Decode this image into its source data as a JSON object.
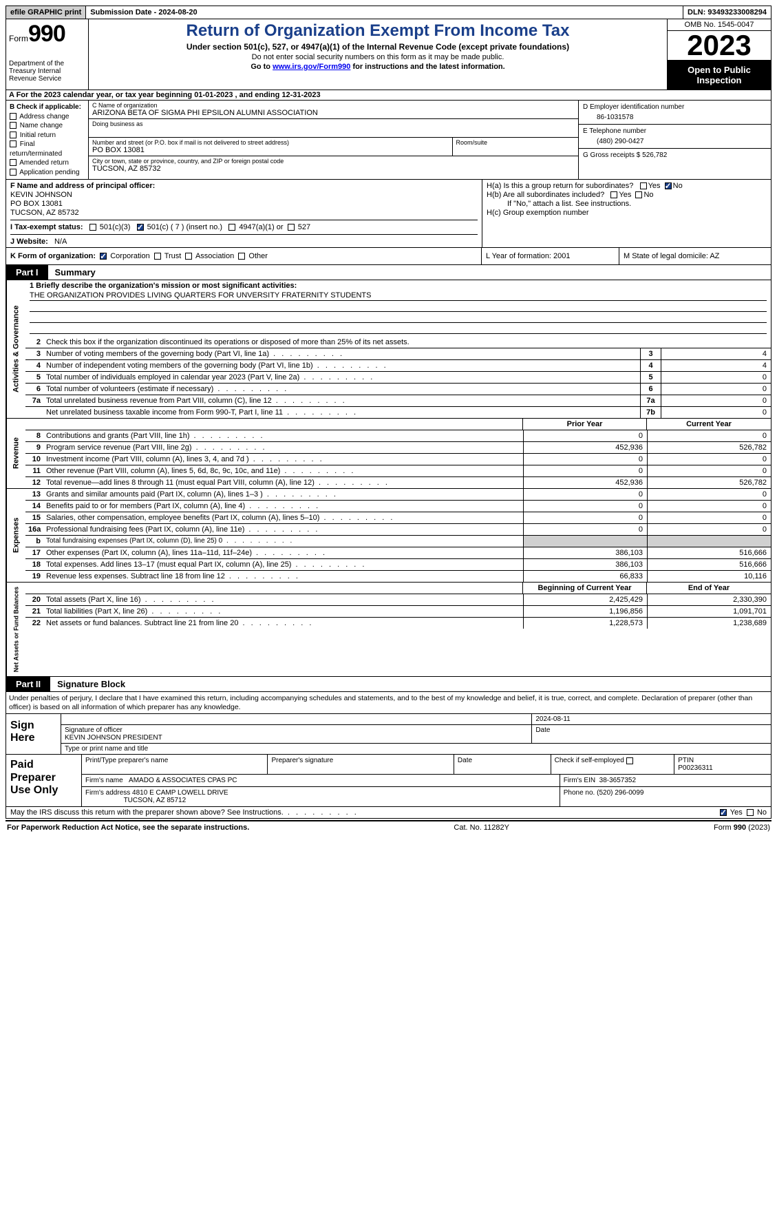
{
  "topbar": {
    "efile": "efile GRAPHIC print",
    "submission_label": "Submission Date - 2024-08-20",
    "dln_label": "DLN: 93493233008294"
  },
  "header": {
    "form_word": "Form",
    "form_num": "990",
    "dept": "Department of the Treasury Internal Revenue Service",
    "title": "Return of Organization Exempt From Income Tax",
    "sub1": "Under section 501(c), 527, or 4947(a)(1) of the Internal Revenue Code (except private foundations)",
    "sub2": "Do not enter social security numbers on this form as it may be made public.",
    "sub3_pre": "Go to ",
    "sub3_link": "www.irs.gov/Form990",
    "sub3_post": " for instructions and the latest information.",
    "omb": "OMB No. 1545-0047",
    "year": "2023",
    "open": "Open to Public Inspection"
  },
  "period": "A For the 2023 calendar year, or tax year beginning 01-01-2023   , and ending 12-31-2023",
  "boxB": {
    "label": "B Check if applicable:",
    "items": [
      "Address change",
      "Name change",
      "Initial return",
      "Final return/terminated",
      "Amended return",
      "Application pending"
    ]
  },
  "boxC": {
    "name_lbl": "C Name of organization",
    "name": "ARIZONA BETA OF SIGMA PHI EPSILON ALUMNI ASSOCIATION",
    "dba_lbl": "Doing business as",
    "street_lbl": "Number and street (or P.O. box if mail is not delivered to street address)",
    "street": "PO BOX 13081",
    "room_lbl": "Room/suite",
    "city_lbl": "City or town, state or province, country, and ZIP or foreign postal code",
    "city": "TUCSON, AZ  85732"
  },
  "boxD": {
    "lbl": "D Employer identification number",
    "val": "86-1031578"
  },
  "boxE": {
    "lbl": "E Telephone number",
    "val": "(480) 290-0427"
  },
  "boxG": {
    "lbl": "G Gross receipts $ 526,782"
  },
  "boxF": {
    "lbl": "F  Name and address of principal officer:",
    "name": "KEVIN JOHNSON",
    "addr1": "PO BOX 13081",
    "addr2": "TUCSON, AZ  85732"
  },
  "boxH": {
    "a": "H(a)  Is this a group return for subordinates?",
    "b": "H(b)  Are all subordinates included?",
    "b_note": "If \"No,\" attach a list. See instructions.",
    "c": "H(c)  Group exemption number",
    "yes": "Yes",
    "no": "No"
  },
  "rowI": {
    "lbl": "I  Tax-exempt status:",
    "o1": "501(c)(3)",
    "o2": "501(c) ( 7 ) (insert no.)",
    "o3": "4947(a)(1) or",
    "o4": "527"
  },
  "rowJ": {
    "lbl": "J  Website:",
    "val": "N/A"
  },
  "rowK": {
    "lbl": "K Form of organization:",
    "o1": "Corporation",
    "o2": "Trust",
    "o3": "Association",
    "o4": "Other"
  },
  "rowL": "L Year of formation: 2001",
  "rowM": "M State of legal domicile: AZ",
  "part1": {
    "tag": "Part I",
    "title": "Summary"
  },
  "vtabs": {
    "gov": "Activities & Governance",
    "rev": "Revenue",
    "exp": "Expenses",
    "net": "Net Assets or Fund Balances"
  },
  "mission": {
    "lbl": "1   Briefly describe the organization's mission or most significant activities:",
    "txt": "THE ORGANIZATION PROVIDES LIVING QUARTERS FOR UNVERSITY FRATERNITY STUDENTS"
  },
  "line2": "Check this box      if the organization discontinued its operations or disposed of more than 25% of its net assets.",
  "gov_rows": [
    {
      "n": "3",
      "t": "Number of voting members of the governing body (Part VI, line 1a)",
      "b": "3",
      "v": "4"
    },
    {
      "n": "4",
      "t": "Number of independent voting members of the governing body (Part VI, line 1b)",
      "b": "4",
      "v": "4"
    },
    {
      "n": "5",
      "t": "Total number of individuals employed in calendar year 2023 (Part V, line 2a)",
      "b": "5",
      "v": "0"
    },
    {
      "n": "6",
      "t": "Total number of volunteers (estimate if necessary)",
      "b": "6",
      "v": "0"
    },
    {
      "n": "7a",
      "t": "Total unrelated business revenue from Part VIII, column (C), line 12",
      "b": "7a",
      "v": "0"
    },
    {
      "n": "",
      "t": "Net unrelated business taxable income from Form 990-T, Part I, line 11",
      "b": "7b",
      "v": "0"
    }
  ],
  "col_hdr": {
    "py": "Prior Year",
    "cy": "Current Year",
    "bcy": "Beginning of Current Year",
    "eoy": "End of Year"
  },
  "rev_rows": [
    {
      "n": "8",
      "t": "Contributions and grants (Part VIII, line 1h)",
      "py": "0",
      "cy": "0"
    },
    {
      "n": "9",
      "t": "Program service revenue (Part VIII, line 2g)",
      "py": "452,936",
      "cy": "526,782"
    },
    {
      "n": "10",
      "t": "Investment income (Part VIII, column (A), lines 3, 4, and 7d )",
      "py": "0",
      "cy": "0"
    },
    {
      "n": "11",
      "t": "Other revenue (Part VIII, column (A), lines 5, 6d, 8c, 9c, 10c, and 11e)",
      "py": "0",
      "cy": "0"
    },
    {
      "n": "12",
      "t": "Total revenue—add lines 8 through 11 (must equal Part VIII, column (A), line 12)",
      "py": "452,936",
      "cy": "526,782"
    }
  ],
  "exp_rows": [
    {
      "n": "13",
      "t": "Grants and similar amounts paid (Part IX, column (A), lines 1–3 )",
      "py": "0",
      "cy": "0"
    },
    {
      "n": "14",
      "t": "Benefits paid to or for members (Part IX, column (A), line 4)",
      "py": "0",
      "cy": "0"
    },
    {
      "n": "15",
      "t": "Salaries, other compensation, employee benefits (Part IX, column (A), lines 5–10)",
      "py": "0",
      "cy": "0"
    },
    {
      "n": "16a",
      "t": "Professional fundraising fees (Part IX, column (A), line 11e)",
      "py": "0",
      "cy": "0"
    },
    {
      "n": "b",
      "t": "Total fundraising expenses (Part IX, column (D), line 25) 0",
      "py": "",
      "cy": "",
      "shade": true,
      "small": true
    },
    {
      "n": "17",
      "t": "Other expenses (Part IX, column (A), lines 11a–11d, 11f–24e)",
      "py": "386,103",
      "cy": "516,666"
    },
    {
      "n": "18",
      "t": "Total expenses. Add lines 13–17 (must equal Part IX, column (A), line 25)",
      "py": "386,103",
      "cy": "516,666"
    },
    {
      "n": "19",
      "t": "Revenue less expenses. Subtract line 18 from line 12",
      "py": "66,833",
      "cy": "10,116"
    }
  ],
  "net_rows": [
    {
      "n": "20",
      "t": "Total assets (Part X, line 16)",
      "py": "2,425,429",
      "cy": "2,330,390"
    },
    {
      "n": "21",
      "t": "Total liabilities (Part X, line 26)",
      "py": "1,196,856",
      "cy": "1,091,701"
    },
    {
      "n": "22",
      "t": "Net assets or fund balances. Subtract line 21 from line 20",
      "py": "1,228,573",
      "cy": "1,238,689"
    }
  ],
  "part2": {
    "tag": "Part II",
    "title": "Signature Block"
  },
  "perjury": "Under penalties of perjury, I declare that I have examined this return, including accompanying schedules and statements, and to the best of my knowledge and belief, it is true, correct, and complete. Declaration of preparer (other than officer) is based on all information of which preparer has any knowledge.",
  "sign": {
    "here": "Sign Here",
    "date": "2024-08-11",
    "sig_lbl": "Signature of officer",
    "name": "KEVIN JOHNSON  PRESIDENT",
    "type_lbl": "Type or print name and title",
    "date_lbl": "Date"
  },
  "prep": {
    "title": "Paid Preparer Use Only",
    "r1": {
      "c1": "Print/Type preparer's name",
      "c2": "Preparer's signature",
      "c3": "Date",
      "c4_lbl": "Check        if self-employed",
      "c5_lbl": "PTIN",
      "c5": "P00236311"
    },
    "r2": {
      "lbl": "Firm's name",
      "val": "AMADO & ASSOCIATES CPAS PC",
      "ein_lbl": "Firm's EIN",
      "ein": "38-3657352"
    },
    "r3": {
      "lbl": "Firm's address",
      "val1": "4810 E CAMP LOWELL DRIVE",
      "val2": "TUCSON, AZ  85712",
      "ph_lbl": "Phone no.",
      "ph": "(520) 296-0099"
    }
  },
  "irs_discuss": "May the IRS discuss this return with the preparer shown above? See Instructions.",
  "footer": {
    "left": "For Paperwork Reduction Act Notice, see the separate instructions.",
    "mid": "Cat. No. 11282Y",
    "right": "Form 990 (2023)"
  },
  "colors": {
    "blue": "#1a3f8a",
    "link": "#0000ee"
  }
}
